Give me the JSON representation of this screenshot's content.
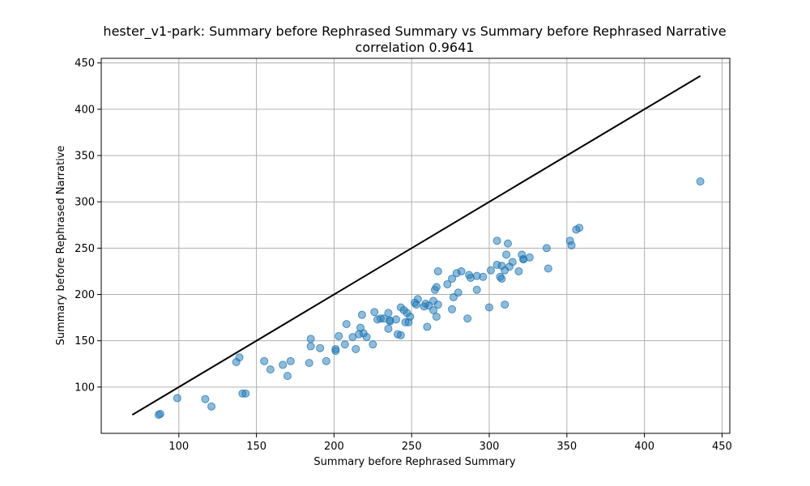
{
  "chart_data": {
    "type": "scatter",
    "title": "hester_v1-park: Summary before Rephrased Summary vs Summary before Rephrased Narrative",
    "subtitle": "correlation 0.9641",
    "xlabel": "Summary before Rephrased Summary",
    "ylabel": "Summary before Rephrased Narrative",
    "xlim": [
      50,
      455
    ],
    "ylim": [
      50,
      455
    ],
    "xticks": [
      100,
      150,
      200,
      250,
      300,
      350,
      400,
      450
    ],
    "yticks": [
      100,
      150,
      200,
      250,
      300,
      350,
      400,
      450
    ],
    "grid": true,
    "reference_line": {
      "x": [
        70,
        436
      ],
      "y": [
        70,
        436
      ],
      "color": "#000000"
    },
    "point_color": "#1f77b4",
    "points": [
      [
        87,
        70
      ],
      [
        88,
        71
      ],
      [
        99,
        88
      ],
      [
        117,
        87
      ],
      [
        121,
        79
      ],
      [
        137,
        127
      ],
      [
        139,
        132
      ],
      [
        141,
        93
      ],
      [
        143,
        93
      ],
      [
        155,
        128
      ],
      [
        159,
        119
      ],
      [
        167,
        124
      ],
      [
        170,
        112
      ],
      [
        172,
        128
      ],
      [
        184,
        126
      ],
      [
        185,
        152
      ],
      [
        185,
        144
      ],
      [
        191,
        142
      ],
      [
        195,
        128
      ],
      [
        201,
        141
      ],
      [
        201,
        139
      ],
      [
        203,
        155
      ],
      [
        207,
        146
      ],
      [
        208,
        168
      ],
      [
        212,
        154
      ],
      [
        214,
        141
      ],
      [
        216,
        157
      ],
      [
        217,
        164
      ],
      [
        218,
        178
      ],
      [
        219,
        158
      ],
      [
        221,
        154
      ],
      [
        225,
        146
      ],
      [
        226,
        181
      ],
      [
        228,
        173
      ],
      [
        230,
        174
      ],
      [
        232,
        174
      ],
      [
        235,
        180
      ],
      [
        235,
        163
      ],
      [
        236,
        172
      ],
      [
        236,
        171
      ],
      [
        240,
        173
      ],
      [
        241,
        157
      ],
      [
        243,
        156
      ],
      [
        243,
        186
      ],
      [
        245,
        183
      ],
      [
        246,
        170
      ],
      [
        247,
        180
      ],
      [
        248,
        170
      ],
      [
        249,
        176
      ],
      [
        252,
        191
      ],
      [
        253,
        189
      ],
      [
        254,
        195
      ],
      [
        258,
        187
      ],
      [
        259,
        190
      ],
      [
        260,
        165
      ],
      [
        261,
        188
      ],
      [
        264,
        183
      ],
      [
        264,
        193
      ],
      [
        265,
        205
      ],
      [
        266,
        176
      ],
      [
        266,
        208
      ],
      [
        267,
        189
      ],
      [
        267,
        225
      ],
      [
        273,
        211
      ],
      [
        276,
        184
      ],
      [
        276,
        217
      ],
      [
        277,
        197
      ],
      [
        279,
        223
      ],
      [
        280,
        202
      ],
      [
        282,
        225
      ],
      [
        286,
        174
      ],
      [
        287,
        221
      ],
      [
        288,
        218
      ],
      [
        292,
        205
      ],
      [
        292,
        220
      ],
      [
        296,
        219
      ],
      [
        300,
        186
      ],
      [
        301,
        226
      ],
      [
        305,
        232
      ],
      [
        305,
        258
      ],
      [
        307,
        219
      ],
      [
        308,
        217
      ],
      [
        308,
        231
      ],
      [
        310,
        226
      ],
      [
        310,
        189
      ],
      [
        311,
        243
      ],
      [
        312,
        255
      ],
      [
        313,
        230
      ],
      [
        315,
        235
      ],
      [
        319,
        225
      ],
      [
        321,
        243
      ],
      [
        322,
        238
      ],
      [
        322,
        238
      ],
      [
        326,
        240
      ],
      [
        337,
        250
      ],
      [
        338,
        228
      ],
      [
        352,
        258
      ],
      [
        353,
        253
      ],
      [
        356,
        270
      ],
      [
        358,
        272
      ],
      [
        436,
        322
      ]
    ]
  }
}
